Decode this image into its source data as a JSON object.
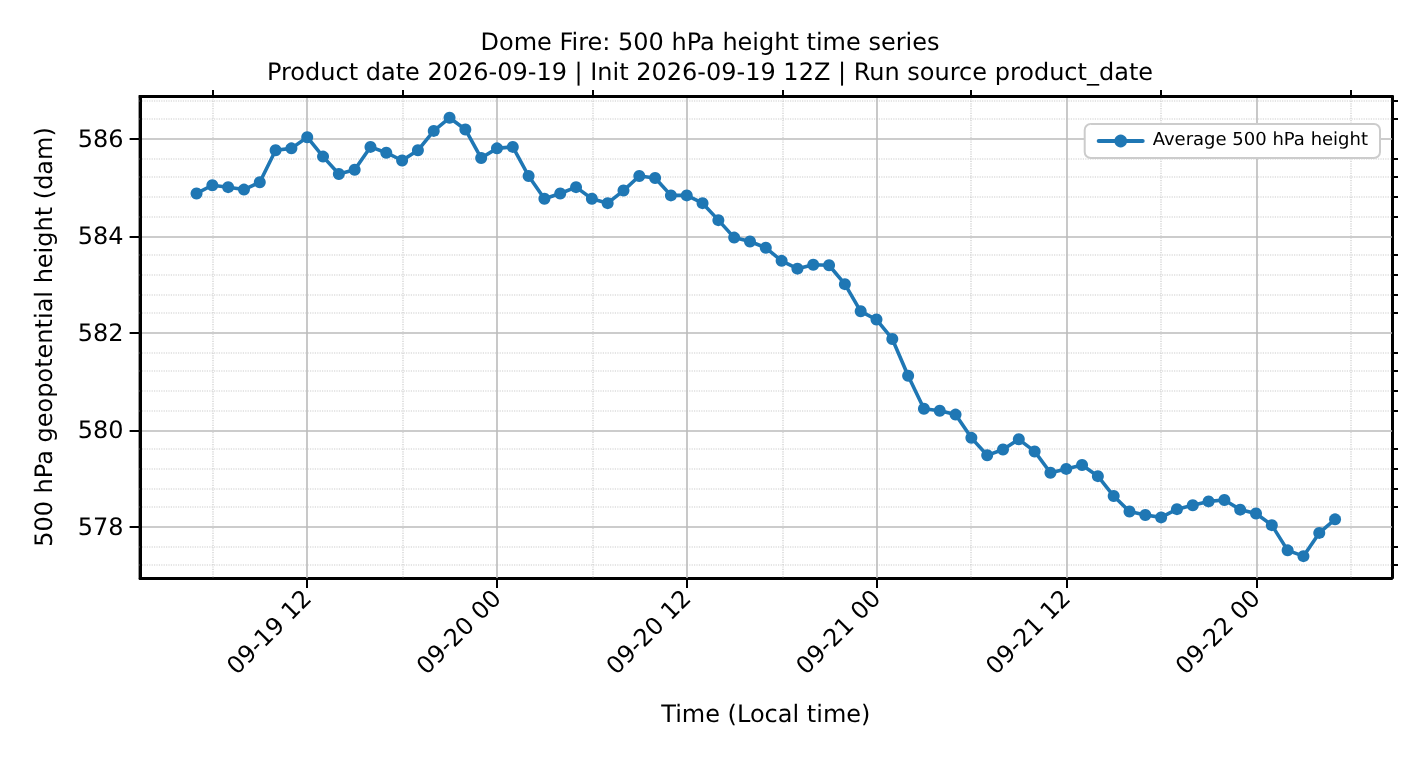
{
  "chart_data": {
    "type": "line",
    "title": "Dome Fire: 500 hPa height time series",
    "subtitle": "Product date 2026-09-19 | Init 2026-09-19 12Z | Run source product_date",
    "xlabel": "Time (Local time)",
    "ylabel": "500 hPa geopotential height (dam)",
    "x": [
      "2026-09-19T05:00",
      "2026-09-19T06:00",
      "2026-09-19T07:00",
      "2026-09-19T08:00",
      "2026-09-19T09:00",
      "2026-09-19T10:00",
      "2026-09-19T11:00",
      "2026-09-19T12:00",
      "2026-09-19T13:00",
      "2026-09-19T14:00",
      "2026-09-19T15:00",
      "2026-09-19T16:00",
      "2026-09-19T17:00",
      "2026-09-19T18:00",
      "2026-09-19T19:00",
      "2026-09-19T20:00",
      "2026-09-19T21:00",
      "2026-09-19T22:00",
      "2026-09-19T23:00",
      "2026-09-20T00:00",
      "2026-09-20T01:00",
      "2026-09-20T02:00",
      "2026-09-20T03:00",
      "2026-09-20T04:00",
      "2026-09-20T05:00",
      "2026-09-20T06:00",
      "2026-09-20T07:00",
      "2026-09-20T08:00",
      "2026-09-20T09:00",
      "2026-09-20T10:00",
      "2026-09-20T11:00",
      "2026-09-20T12:00",
      "2026-09-20T13:00",
      "2026-09-20T14:00",
      "2026-09-20T15:00",
      "2026-09-20T16:00",
      "2026-09-20T17:00",
      "2026-09-20T18:00",
      "2026-09-20T19:00",
      "2026-09-20T20:00",
      "2026-09-20T21:00",
      "2026-09-20T22:00",
      "2026-09-20T23:00",
      "2026-09-21T00:00",
      "2026-09-21T01:00",
      "2026-09-21T02:00",
      "2026-09-21T03:00",
      "2026-09-21T04:00",
      "2026-09-21T05:00",
      "2026-09-21T06:00",
      "2026-09-21T07:00",
      "2026-09-21T08:00",
      "2026-09-21T09:00",
      "2026-09-21T10:00",
      "2026-09-21T11:00",
      "2026-09-21T12:00",
      "2026-09-21T13:00",
      "2026-09-21T14:00",
      "2026-09-21T15:00",
      "2026-09-21T16:00",
      "2026-09-21T17:00",
      "2026-09-21T18:00",
      "2026-09-21T19:00",
      "2026-09-21T20:00",
      "2026-09-21T21:00",
      "2026-09-21T22:00",
      "2026-09-21T23:00",
      "2026-09-22T00:00",
      "2026-09-22T01:00",
      "2026-09-22T02:00",
      "2026-09-22T03:00",
      "2026-09-22T04:00",
      "2026-09-22T05:00"
    ],
    "series": [
      {
        "name": "Average 500 hPa height",
        "color": "#1f77b4",
        "values": [
          584.87,
          585.04,
          585.0,
          584.95,
          585.1,
          585.76,
          585.8,
          586.03,
          585.63,
          585.27,
          585.36,
          585.83,
          585.71,
          585.55,
          585.76,
          586.16,
          586.43,
          586.19,
          585.6,
          585.8,
          585.83,
          585.23,
          584.76,
          584.87,
          585.0,
          584.76,
          584.67,
          584.93,
          585.23,
          585.19,
          584.83,
          584.83,
          584.67,
          584.32,
          583.96,
          583.88,
          583.75,
          583.48,
          583.32,
          583.4,
          583.39,
          583.0,
          582.44,
          582.27,
          581.87,
          581.11,
          580.43,
          580.39,
          580.31,
          579.83,
          579.47,
          579.59,
          579.8,
          579.55,
          579.11,
          579.19,
          579.27,
          579.04,
          578.63,
          578.31,
          578.24,
          578.19,
          578.36,
          578.44,
          578.52,
          578.55,
          578.35,
          578.27,
          578.03,
          577.51,
          577.39,
          577.87,
          578.15
        ]
      }
    ],
    "xlim": [
      "2026-09-19T01:24",
      "2026-09-22T08:36"
    ],
    "xticks": [
      {
        "value": "2026-09-19T06:00",
        "label": null
      },
      {
        "value": "2026-09-19T12:00",
        "label": "09-19 12"
      },
      {
        "value": "2026-09-19T18:00",
        "label": null
      },
      {
        "value": "2026-09-20T00:00",
        "label": "09-20 00"
      },
      {
        "value": "2026-09-20T06:00",
        "label": null
      },
      {
        "value": "2026-09-20T12:00",
        "label": "09-20 12"
      },
      {
        "value": "2026-09-20T18:00",
        "label": null
      },
      {
        "value": "2026-09-21T00:00",
        "label": "09-21 00"
      },
      {
        "value": "2026-09-21T06:00",
        "label": null
      },
      {
        "value": "2026-09-21T12:00",
        "label": "09-21 12"
      },
      {
        "value": "2026-09-21T18:00",
        "label": null
      },
      {
        "value": "2026-09-22T00:00",
        "label": "09-22 00"
      },
      {
        "value": "2026-09-22T06:00",
        "label": null
      }
    ],
    "ylim": [
      576.94,
      586.88
    ],
    "yticks": [
      {
        "value": 577.2,
        "label": null
      },
      {
        "value": 577.6,
        "label": null
      },
      578,
      {
        "value": 578.4,
        "label": null
      },
      {
        "value": 578.8,
        "label": null
      },
      {
        "value": 579.2,
        "label": null
      },
      {
        "value": 579.6,
        "label": null
      },
      580,
      {
        "value": 580.4,
        "label": null
      },
      {
        "value": 580.8,
        "label": null
      },
      {
        "value": 581.2,
        "label": null
      },
      {
        "value": 581.6,
        "label": null
      },
      582,
      {
        "value": 582.4,
        "label": null
      },
      {
        "value": 582.8,
        "label": null
      },
      {
        "value": 583.2,
        "label": null
      },
      {
        "value": 583.6,
        "label": null
      },
      584,
      {
        "value": 584.4,
        "label": null
      },
      {
        "value": 584.8,
        "label": null
      },
      {
        "value": 585.2,
        "label": null
      },
      {
        "value": 585.6,
        "label": null
      },
      586,
      {
        "value": 586.4,
        "label": null
      },
      {
        "value": 586.8,
        "label": null
      }
    ],
    "grid": true,
    "legend": "top right",
    "marker": "circle",
    "line_style": "solid"
  }
}
